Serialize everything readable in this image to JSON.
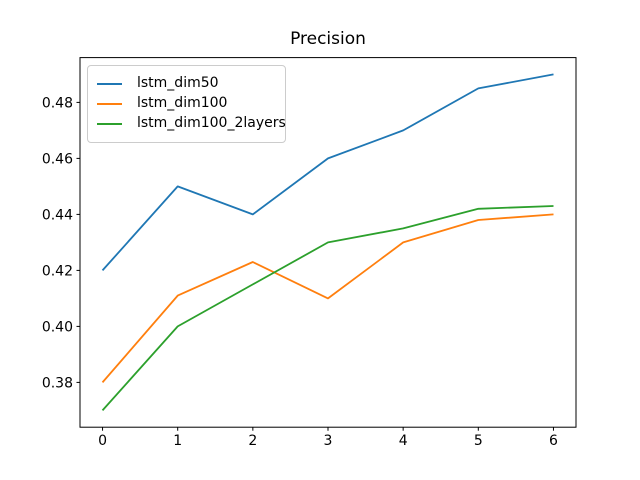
{
  "chart_data": {
    "type": "line",
    "title": "Precision",
    "xlabel": "",
    "ylabel": "",
    "x": [
      0,
      1,
      2,
      3,
      4,
      5,
      6
    ],
    "xticks": [
      "0",
      "1",
      "2",
      "3",
      "4",
      "5",
      "6"
    ],
    "yticks": [
      "0.38",
      "0.40",
      "0.42",
      "0.44",
      "0.46",
      "0.48"
    ],
    "xlim": [
      -0.3,
      6.3
    ],
    "ylim": [
      0.364,
      0.496
    ],
    "grid": false,
    "legend_position": "upper left",
    "series": [
      {
        "name": "lstm_dim50",
        "color": "#1f77b4",
        "values": [
          0.42,
          0.45,
          0.44,
          0.46,
          0.47,
          0.485,
          0.49
        ]
      },
      {
        "name": "lstm_dim100",
        "color": "#ff7f0e",
        "values": [
          0.38,
          0.411,
          0.423,
          0.41,
          0.43,
          0.438,
          0.44
        ]
      },
      {
        "name": "lstm_dim100_2layers",
        "color": "#2ca02c",
        "values": [
          0.37,
          0.4,
          0.415,
          0.43,
          0.435,
          0.442,
          0.443
        ]
      }
    ]
  }
}
